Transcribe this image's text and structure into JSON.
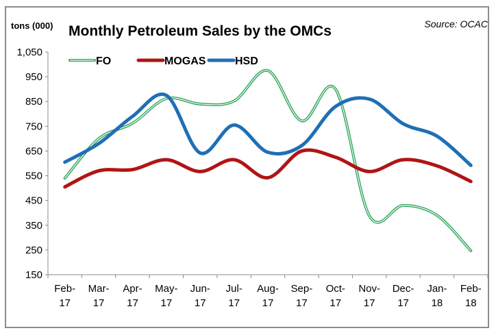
{
  "chart_data": {
    "type": "line",
    "title": "Monthly Petroleum Sales by the OMCs",
    "ylabel": "tons (000)",
    "source": "Source: OCAC",
    "ylim": [
      150,
      1050
    ],
    "yticks": [
      "1,050",
      "950",
      "850",
      "750",
      "650",
      "550",
      "450",
      "350",
      "250",
      "150"
    ],
    "ytick_values": [
      1050,
      950,
      850,
      750,
      650,
      550,
      450,
      350,
      250,
      150
    ],
    "categories": [
      [
        "Feb-",
        "17"
      ],
      [
        "Mar-",
        "17"
      ],
      [
        "Apr-",
        "17"
      ],
      [
        "May-",
        "17"
      ],
      [
        "Jun-",
        "17"
      ],
      [
        "Jul-",
        "17"
      ],
      [
        "Aug-",
        "17"
      ],
      [
        "Sep-",
        "17"
      ],
      [
        "Oct-",
        "17"
      ],
      [
        "Nov-",
        "17"
      ],
      [
        "Dec-",
        "17"
      ],
      [
        "Jan-",
        "18"
      ],
      [
        "Feb-",
        "18"
      ]
    ],
    "legend_position": "top-left",
    "grid": false,
    "smoothed": true,
    "series": [
      {
        "name": "FO",
        "color": "#2ca65a",
        "style": "double",
        "values": [
          540,
          700,
          762,
          862,
          840,
          852,
          975,
          772,
          900,
          388,
          430,
          390,
          247
        ]
      },
      {
        "name": "MOGAS",
        "color": "#b01414",
        "style": "solid",
        "values": [
          505,
          570,
          575,
          615,
          567,
          615,
          542,
          650,
          625,
          567,
          615,
          590,
          527
        ]
      },
      {
        "name": "HSD",
        "color": "#1f6fb5",
        "style": "solid",
        "values": [
          605,
          680,
          790,
          875,
          642,
          755,
          645,
          672,
          830,
          860,
          760,
          710,
          592
        ]
      }
    ]
  }
}
